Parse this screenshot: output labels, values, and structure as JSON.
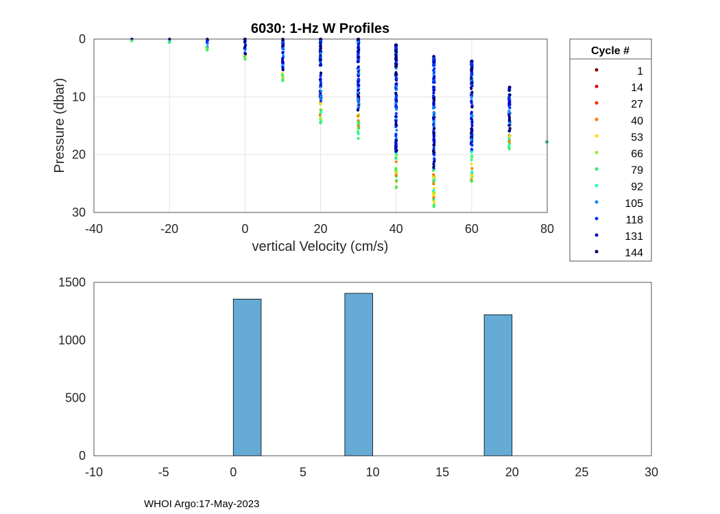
{
  "figure": {
    "footer": "WHOI Argo:17-May-2023"
  },
  "chart_data": [
    {
      "type": "scatter",
      "title": "6030: 1-Hz W Profiles",
      "xlabel": "vertical Velocity (cm/s)",
      "ylabel": "Pressure (dbar)",
      "xlim": [
        -40,
        80
      ],
      "ylim": [
        0,
        30
      ],
      "y_reversed": true,
      "xticks": [
        -40,
        -20,
        0,
        20,
        40,
        60,
        80
      ],
      "yticks": [
        0,
        10,
        20,
        30
      ],
      "grid": true,
      "legend": {
        "title": "Cycle #",
        "placement": "outside-right",
        "entries": [
          {
            "label": "1",
            "color": "#800000"
          },
          {
            "label": "14",
            "color": "#dc0000"
          },
          {
            "label": "27",
            "color": "#ff2a00"
          },
          {
            "label": "40",
            "color": "#ff7a00"
          },
          {
            "label": "53",
            "color": "#ffdd00"
          },
          {
            "label": "66",
            "color": "#99ee33"
          },
          {
            "label": "79",
            "color": "#33ee66"
          },
          {
            "label": "92",
            "color": "#22ffcc"
          },
          {
            "label": "105",
            "color": "#1188ff"
          },
          {
            "label": "118",
            "color": "#0033ff"
          },
          {
            "label": "131",
            "color": "#0000cc"
          },
          {
            "label": "144",
            "color": "#000066"
          }
        ]
      },
      "columns": [
        {
          "x": -30,
          "pmin": 0.0,
          "pmax": 0.3
        },
        {
          "x": -20,
          "pmin": 0.0,
          "pmax": 0.6
        },
        {
          "x": -10,
          "pmin": 0.0,
          "pmax": 1.9
        },
        {
          "x": 0,
          "pmin": 0.0,
          "pmax": 3.5
        },
        {
          "x": 10,
          "pmin": 0.0,
          "pmax": 7.2
        },
        {
          "x": 20,
          "pmin": 0.0,
          "pmax": 14.5
        },
        {
          "x": 30,
          "pmin": 0.0,
          "pmax": 17.2
        },
        {
          "x": 40,
          "pmin": 1.0,
          "pmax": 25.7
        },
        {
          "x": 50,
          "pmin": 3.0,
          "pmax": 29.0
        },
        {
          "x": 60,
          "pmin": 3.8,
          "pmax": 24.6
        },
        {
          "x": 70,
          "pmin": 8.3,
          "pmax": 19.0
        },
        {
          "x": 80,
          "pmin": 17.8,
          "pmax": 17.8
        }
      ]
    },
    {
      "type": "bar",
      "title": "",
      "xlabel": "",
      "ylabel": "",
      "xlim": [
        -10,
        30
      ],
      "ylim": [
        0,
        1500
      ],
      "xticks": [
        -10,
        -5,
        0,
        5,
        10,
        15,
        20,
        25,
        30
      ],
      "yticks": [
        0,
        500,
        1000,
        1500
      ],
      "grid": false,
      "bar_color": "#66aad6",
      "bars": [
        {
          "x0": 0,
          "x1": 2,
          "value": 1355
        },
        {
          "x0": 8,
          "x1": 10,
          "value": 1405
        },
        {
          "x0": 18,
          "x1": 20,
          "value": 1220
        }
      ]
    }
  ]
}
